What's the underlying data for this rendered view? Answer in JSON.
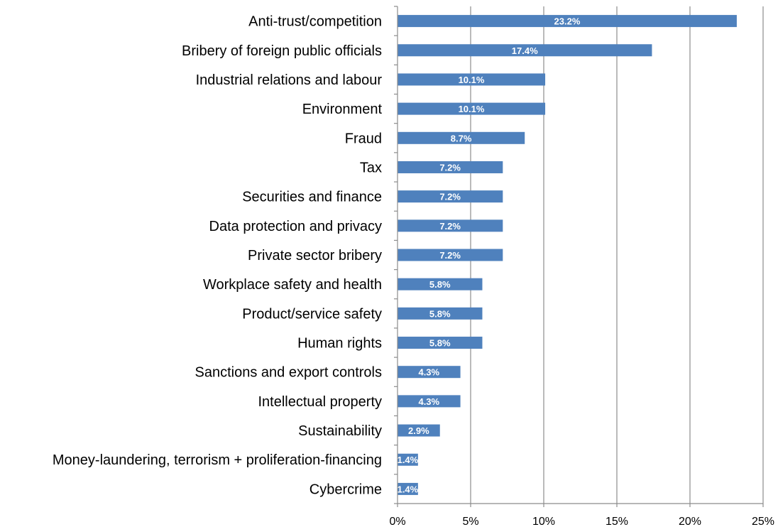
{
  "chart_data": {
    "type": "bar",
    "orientation": "horizontal",
    "categories": [
      "Anti-trust/competition",
      "Bribery of foreign public officials",
      "Industrial relations and labour",
      "Environment",
      "Fraud",
      "Tax",
      "Securities and finance",
      "Data protection and privacy",
      "Private sector bribery",
      "Workplace safety and health",
      "Product/service safety",
      "Human rights",
      "Sanctions and export controls",
      "Intellectual property",
      "Sustainability",
      "Money-laundering, terrorism + proliferation-financing",
      "Cybercrime"
    ],
    "values": [
      23.2,
      17.4,
      10.1,
      10.1,
      8.7,
      7.2,
      7.2,
      7.2,
      7.2,
      5.8,
      5.8,
      5.8,
      4.3,
      4.3,
      2.9,
      1.4,
      1.4
    ],
    "data_labels": [
      "23.2%",
      "17.4%",
      "10.1%",
      "10.1%",
      "8.7%",
      "7.2%",
      "7.2%",
      "7.2%",
      "7.2%",
      "5.8%",
      "5.8%",
      "5.8%",
      "4.3%",
      "4.3%",
      "2.9%",
      "1.4%",
      "1.4%"
    ],
    "x_ticks": [
      0,
      5,
      10,
      15,
      20,
      25
    ],
    "x_tick_labels": [
      "0%",
      "5%",
      "10%",
      "15%",
      "20%",
      "25%"
    ],
    "xlim": [
      0,
      25
    ],
    "title": "",
    "xlabel": "",
    "ylabel": "",
    "grid": true,
    "legend": "none",
    "bar_color": "#4f81bd",
    "grid_color": "#8c8c8c",
    "label_color": "#ffffff"
  }
}
